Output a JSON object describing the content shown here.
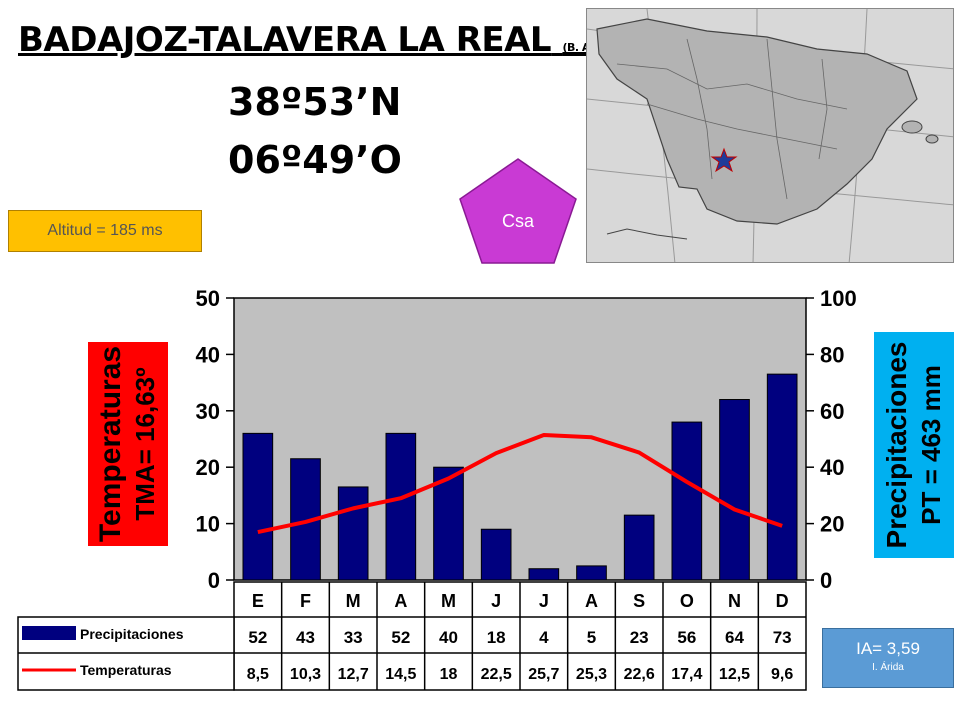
{
  "header": {
    "station": "BADAJOZ-TALAVERA LA REAL",
    "station_note": "(B. Aérea)",
    "latitude": "38º53’N",
    "longitude": "06º49’O"
  },
  "altitude_label": "Altitud = 185 ms",
  "climate_class": "Csa",
  "aridity": {
    "index": "IA= 3,59",
    "class": "I. Árida"
  },
  "map": {
    "marker_color": "#c00000",
    "marker_icon": "star-icon"
  },
  "chart_data": {
    "type": "bar",
    "categories": [
      "E",
      "F",
      "M",
      "A",
      "M",
      "J",
      "J",
      "A",
      "S",
      "O",
      "N",
      "D"
    ],
    "series": [
      {
        "name": "Precipitaciones",
        "axis": "right",
        "kind": "bar",
        "color": "#00007f",
        "values": [
          52,
          43,
          33,
          52,
          40,
          18,
          4,
          5,
          23,
          56,
          64,
          73
        ],
        "labels": [
          "52",
          "43",
          "33",
          "52",
          "40",
          "18",
          "4",
          "5",
          "23",
          "56",
          "64",
          "73"
        ]
      },
      {
        "name": "Temperaturas",
        "axis": "left",
        "kind": "line",
        "color": "#ff0000",
        "values": [
          8.5,
          10.3,
          12.7,
          14.5,
          18,
          22.5,
          25.7,
          25.3,
          22.6,
          17.4,
          12.5,
          9.6
        ],
        "labels": [
          "8,5",
          "10,3",
          "12,7",
          "14,5",
          "18",
          "22,5",
          "25,7",
          "25,3",
          "22,6",
          "17,4",
          "12,5",
          "9,6"
        ]
      }
    ],
    "left_axis": {
      "ticks": [
        "0",
        "10",
        "20",
        "30",
        "40",
        "50"
      ],
      "range": [
        0,
        50
      ]
    },
    "right_axis": {
      "ticks": [
        "0",
        "20",
        "40",
        "60",
        "80",
        "100"
      ],
      "range": [
        0,
        100
      ]
    },
    "left_title": [
      "Temperaturas",
      "TMA= 16,63º"
    ],
    "right_title": [
      "Precipitaciones",
      "PT = 463 mm"
    ],
    "left_title_bg": "#ff0000",
    "right_title_bg": "#00b0f0",
    "plot_bg": "#c0c0c0",
    "grid": true
  }
}
